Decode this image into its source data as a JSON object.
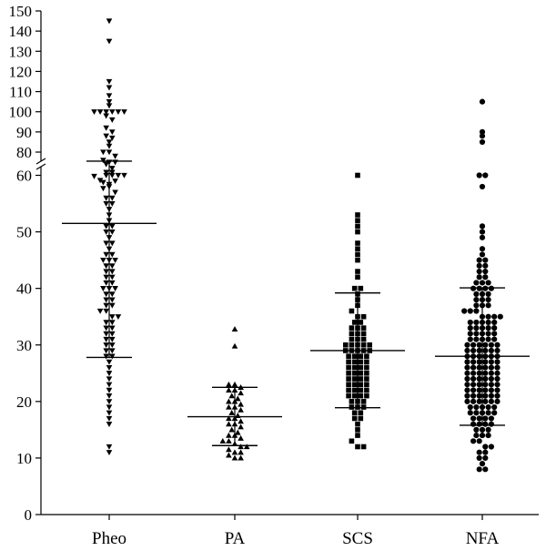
{
  "chart_data": {
    "type": "scatter",
    "subtype": "dot-plot-with-mean-and-sd",
    "title": "",
    "xlabel": "",
    "ylabel": "",
    "axis_break": {
      "lower_range": [
        0,
        60
      ],
      "upper_range": [
        75,
        150
      ]
    },
    "yticks_lower": [
      0,
      10,
      20,
      30,
      40,
      50,
      60
    ],
    "yticks_upper": [
      80,
      90,
      100,
      110,
      120,
      130,
      140,
      150
    ],
    "categories": [
      "Pheo",
      "PA",
      "SCS",
      "NFA"
    ],
    "series": [
      {
        "category": "Pheo",
        "marker": "triangle-down",
        "mean": 51.5,
        "sd_upper": 75.5,
        "sd_lower": 27.8,
        "values": [
          145,
          135,
          115,
          112,
          108,
          105,
          103,
          100,
          100,
          100,
          100,
          100,
          100,
          98,
          96,
          92,
          90,
          88,
          87,
          85,
          83,
          80,
          80,
          78,
          76,
          75,
          75,
          74,
          72,
          70,
          70,
          68,
          66,
          65,
          64,
          62,
          60,
          60,
          60,
          60,
          59,
          58,
          57,
          56,
          56,
          55,
          55,
          54,
          53,
          52,
          51,
          51,
          50,
          50,
          49,
          48,
          48,
          47,
          46,
          46,
          45,
          45,
          45,
          44,
          44,
          43,
          43,
          42,
          42,
          41,
          41,
          40,
          40,
          40,
          39,
          39,
          38,
          38,
          37,
          37,
          36,
          36,
          35,
          35,
          34,
          34,
          33,
          33,
          32,
          32,
          31,
          31,
          30,
          30,
          29,
          29,
          28,
          28,
          27,
          26,
          25,
          24,
          23,
          22,
          21,
          20,
          19,
          18,
          17,
          16,
          12,
          11
        ]
      },
      {
        "category": "PA",
        "marker": "triangle-up",
        "mean": 17.3,
        "sd_upper": 22.5,
        "sd_lower": 12.2,
        "values": [
          32.8,
          29.8,
          23,
          23,
          22.5,
          22,
          22,
          21.5,
          21,
          20.5,
          20,
          20,
          19.5,
          19,
          19,
          18.5,
          18,
          17.5,
          17,
          17,
          16.5,
          16,
          16,
          15.5,
          15,
          14.5,
          14,
          14,
          13.5,
          13,
          13,
          12.5,
          12,
          12,
          11.5,
          11,
          11,
          10.5,
          10,
          10
        ]
      },
      {
        "category": "SCS",
        "marker": "square",
        "mean": 29,
        "sd_upper": 39.2,
        "sd_lower": 18.9,
        "values": [
          60,
          53,
          52,
          51,
          50,
          48,
          47,
          46,
          45,
          43,
          42,
          40,
          40,
          39,
          38,
          37,
          36,
          35,
          35,
          34,
          34,
          33,
          33,
          33,
          32,
          32,
          32,
          31,
          31,
          31,
          30,
          30,
          30,
          30,
          30,
          29,
          29,
          29,
          29,
          29,
          28,
          28,
          28,
          28,
          27,
          27,
          27,
          27,
          26,
          26,
          26,
          26,
          25,
          25,
          25,
          25,
          24,
          24,
          24,
          24,
          23,
          23,
          23,
          23,
          22,
          22,
          22,
          22,
          21,
          21,
          21,
          21,
          20,
          20,
          20,
          19,
          19,
          19,
          18,
          18,
          17,
          17,
          16,
          15,
          14,
          13,
          12,
          12
        ]
      },
      {
        "category": "NFA",
        "marker": "circle",
        "mean": 28,
        "sd_upper": 40.1,
        "sd_lower": 15.8,
        "values": [
          105,
          90,
          88,
          85,
          60,
          60,
          58,
          51,
          50,
          49,
          47,
          46,
          45,
          45,
          44,
          44,
          43,
          43,
          42,
          42,
          41,
          41,
          41,
          40,
          40,
          40,
          40,
          39,
          39,
          39,
          38,
          38,
          38,
          37,
          37,
          37,
          36,
          36,
          36,
          35,
          35,
          35,
          35,
          34,
          34,
          34,
          34,
          34,
          33,
          33,
          33,
          33,
          33,
          32,
          32,
          32,
          32,
          32,
          31,
          31,
          31,
          31,
          31,
          30,
          30,
          30,
          30,
          30,
          30,
          29,
          29,
          29,
          29,
          29,
          29,
          28,
          28,
          28,
          28,
          28,
          28,
          27,
          27,
          27,
          27,
          27,
          27,
          26,
          26,
          26,
          26,
          26,
          26,
          25,
          25,
          25,
          25,
          25,
          25,
          24,
          24,
          24,
          24,
          24,
          24,
          23,
          23,
          23,
          23,
          23,
          23,
          22,
          22,
          22,
          22,
          22,
          22,
          21,
          21,
          21,
          21,
          21,
          21,
          20,
          20,
          20,
          20,
          20,
          20,
          19,
          19,
          19,
          19,
          19,
          18,
          18,
          18,
          18,
          18,
          17,
          17,
          17,
          17,
          16,
          16,
          16,
          16,
          15,
          15,
          15,
          14,
          14,
          14,
          13,
          13,
          12,
          12,
          11,
          11,
          10,
          10,
          9,
          8,
          8
        ]
      }
    ]
  }
}
